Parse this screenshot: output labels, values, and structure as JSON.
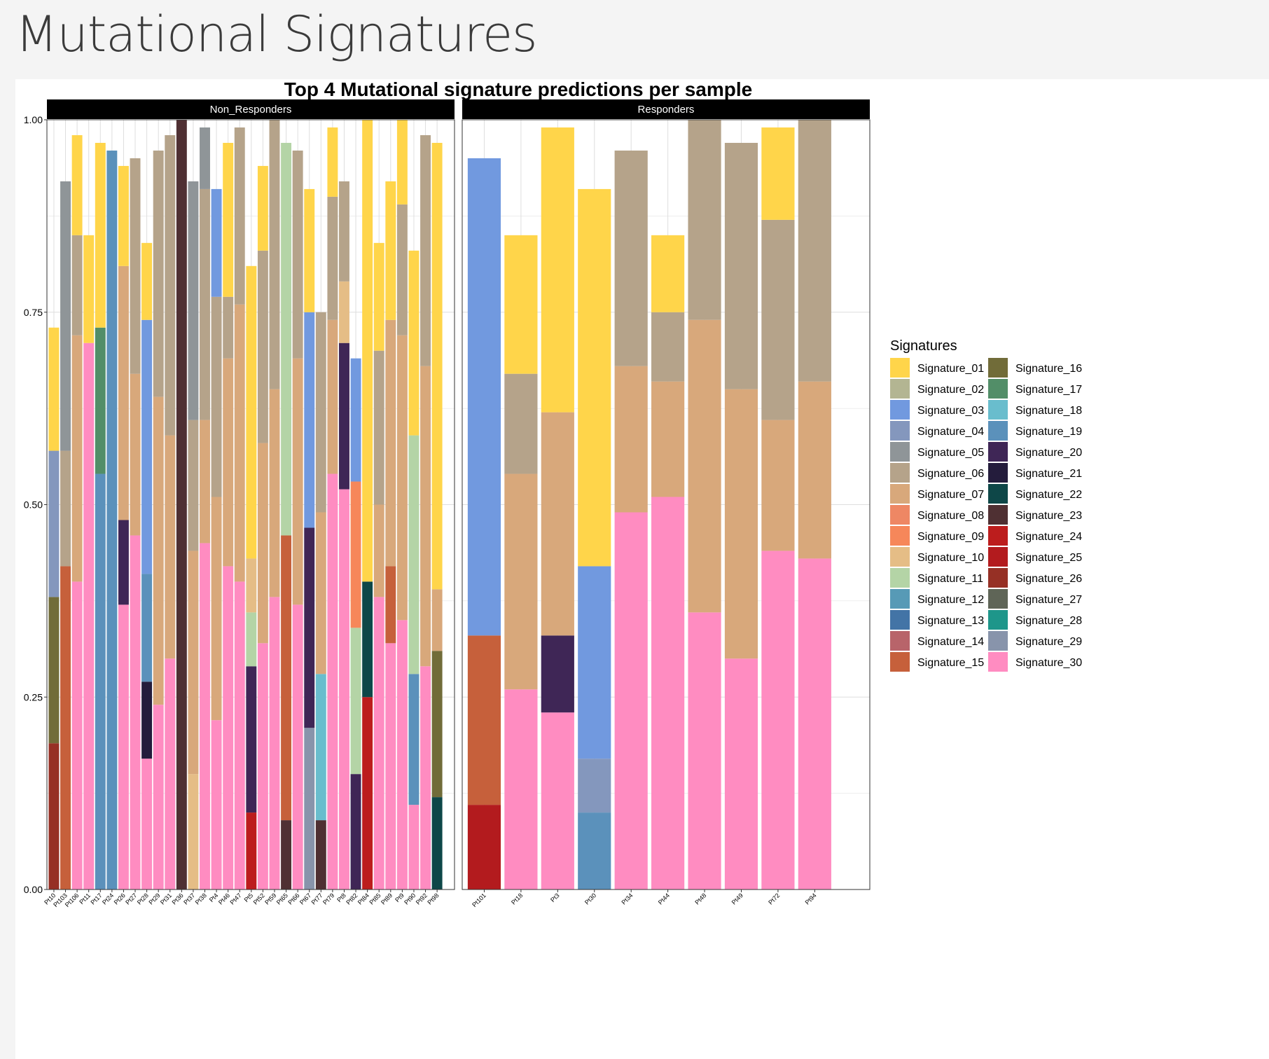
{
  "page": {
    "title": "Mutational Signatures"
  },
  "chart_data": {
    "type": "bar",
    "stacked": true,
    "title": "Top 4 Mutational signature predictions per sample",
    "xlabel": "",
    "ylabel": "",
    "ylim": [
      0,
      1
    ],
    "yticks": [
      "0.00",
      "0.25",
      "0.50",
      "0.75",
      "1.00"
    ],
    "grid": true,
    "legend": {
      "title": "Signatures",
      "position": "right"
    },
    "signatures": [
      {
        "name": "Signature_01",
        "color": "#FFD54A"
      },
      {
        "name": "Signature_02",
        "color": "#B3B592"
      },
      {
        "name": "Signature_03",
        "color": "#7199DF"
      },
      {
        "name": "Signature_04",
        "color": "#8497BD"
      },
      {
        "name": "Signature_05",
        "color": "#8F9598"
      },
      {
        "name": "Signature_06",
        "color": "#B5A38A"
      },
      {
        "name": "Signature_07",
        "color": "#D8A87B"
      },
      {
        "name": "Signature_08",
        "color": "#EE8764"
      },
      {
        "name": "Signature_09",
        "color": "#F6875A"
      },
      {
        "name": "Signature_10",
        "color": "#E5BD86"
      },
      {
        "name": "Signature_11",
        "color": "#B4D4A6"
      },
      {
        "name": "Signature_12",
        "color": "#579AB6"
      },
      {
        "name": "Signature_13",
        "color": "#4374A6"
      },
      {
        "name": "Signature_14",
        "color": "#B8646A"
      },
      {
        "name": "Signature_15",
        "color": "#C6603B"
      },
      {
        "name": "Signature_16",
        "color": "#716C39"
      },
      {
        "name": "Signature_17",
        "color": "#528E68"
      },
      {
        "name": "Signature_18",
        "color": "#69BDCD"
      },
      {
        "name": "Signature_19",
        "color": "#5B91BB"
      },
      {
        "name": "Signature_20",
        "color": "#3F2656"
      },
      {
        "name": "Signature_21",
        "color": "#241C3C"
      },
      {
        "name": "Signature_22",
        "color": "#0E4748"
      },
      {
        "name": "Signature_23",
        "color": "#4F3033"
      },
      {
        "name": "Signature_24",
        "color": "#BC1D1D"
      },
      {
        "name": "Signature_25",
        "color": "#B31B1E"
      },
      {
        "name": "Signature_26",
        "color": "#963025"
      },
      {
        "name": "Signature_27",
        "color": "#5F6557"
      },
      {
        "name": "Signature_28",
        "color": "#1E968A"
      },
      {
        "name": "Signature_29",
        "color": "#8894AB"
      },
      {
        "name": "Signature_30",
        "color": "#FF8CC1"
      }
    ],
    "panels": [
      {
        "name": "Non_Responders",
        "samples": [
          {
            "id": "Pt10",
            "stack": [
              [
                "Signature_26",
                0.19
              ],
              [
                "Signature_16",
                0.19
              ],
              [
                "Signature_04",
                0.19
              ],
              [
                "Signature_01",
                0.16
              ]
            ]
          },
          {
            "id": "Pt103",
            "stack": [
              [
                "Signature_15",
                0.42
              ],
              [
                "Signature_06",
                0.15
              ],
              [
                "Signature_05",
                0.35
              ]
            ]
          },
          {
            "id": "Pt106",
            "stack": [
              [
                "Signature_30",
                0.4
              ],
              [
                "Signature_07",
                0.32
              ],
              [
                "Signature_06",
                0.13
              ],
              [
                "Signature_01",
                0.13
              ]
            ]
          },
          {
            "id": "Pt11",
            "stack": [
              [
                "Signature_30",
                0.71
              ],
              [
                "Signature_01",
                0.14
              ]
            ]
          },
          {
            "id": "Pt17",
            "stack": [
              [
                "Signature_19",
                0.54
              ],
              [
                "Signature_17",
                0.19
              ],
              [
                "Signature_01",
                0.24
              ]
            ]
          },
          {
            "id": "Pt24",
            "stack": [
              [
                "Signature_19",
                0.96
              ]
            ]
          },
          {
            "id": "Pt26",
            "stack": [
              [
                "Signature_30",
                0.37
              ],
              [
                "Signature_20",
                0.11
              ],
              [
                "Signature_07",
                0.33
              ],
              [
                "Signature_01",
                0.13
              ]
            ]
          },
          {
            "id": "Pt27",
            "stack": [
              [
                "Signature_30",
                0.46
              ],
              [
                "Signature_07",
                0.21
              ],
              [
                "Signature_06",
                0.28
              ]
            ]
          },
          {
            "id": "Pt28",
            "stack": [
              [
                "Signature_30",
                0.17
              ],
              [
                "Signature_21",
                0.1
              ],
              [
                "Signature_19",
                0.14
              ],
              [
                "Signature_03",
                0.33
              ],
              [
                "Signature_01",
                0.1
              ]
            ]
          },
          {
            "id": "Pt29",
            "stack": [
              [
                "Signature_30",
                0.24
              ],
              [
                "Signature_07",
                0.4
              ],
              [
                "Signature_06",
                0.32
              ]
            ]
          },
          {
            "id": "Pt31",
            "stack": [
              [
                "Signature_30",
                0.3
              ],
              [
                "Signature_07",
                0.29
              ],
              [
                "Signature_06",
                0.39
              ]
            ]
          },
          {
            "id": "Pt36",
            "stack": [
              [
                "Signature_23",
                1.0
              ]
            ]
          },
          {
            "id": "Pt37",
            "stack": [
              [
                "Signature_10",
                0.15
              ],
              [
                "Signature_07",
                0.29
              ],
              [
                "Signature_06",
                0.17
              ],
              [
                "Signature_05",
                0.31
              ]
            ]
          },
          {
            "id": "Pt38",
            "stack": [
              [
                "Signature_30",
                0.45
              ],
              [
                "Signature_07",
                0.16
              ],
              [
                "Signature_06",
                0.3
              ],
              [
                "Signature_05",
                0.08
              ]
            ]
          },
          {
            "id": "Pt4",
            "stack": [
              [
                "Signature_30",
                0.22
              ],
              [
                "Signature_07",
                0.29
              ],
              [
                "Signature_06",
                0.26
              ],
              [
                "Signature_03",
                0.14
              ]
            ]
          },
          {
            "id": "Pt46",
            "stack": [
              [
                "Signature_30",
                0.42
              ],
              [
                "Signature_07",
                0.27
              ],
              [
                "Signature_06",
                0.08
              ],
              [
                "Signature_01",
                0.2
              ]
            ]
          },
          {
            "id": "Pt47",
            "stack": [
              [
                "Signature_30",
                0.4
              ],
              [
                "Signature_07",
                0.36
              ],
              [
                "Signature_06",
                0.23
              ]
            ]
          },
          {
            "id": "Pt5",
            "stack": [
              [
                "Signature_24",
                0.1
              ],
              [
                "Signature_20",
                0.19
              ],
              [
                "Signature_11",
                0.07
              ],
              [
                "Signature_10",
                0.07
              ],
              [
                "Signature_01",
                0.38
              ]
            ]
          },
          {
            "id": "Pt52",
            "stack": [
              [
                "Signature_30",
                0.32
              ],
              [
                "Signature_07",
                0.26
              ],
              [
                "Signature_06",
                0.25
              ],
              [
                "Signature_01",
                0.11
              ]
            ]
          },
          {
            "id": "Pt59",
            "stack": [
              [
                "Signature_30",
                0.38
              ],
              [
                "Signature_07",
                0.27
              ],
              [
                "Signature_06",
                0.35
              ]
            ]
          },
          {
            "id": "Pt65",
            "stack": [
              [
                "Signature_23",
                0.09
              ],
              [
                "Signature_15",
                0.37
              ],
              [
                "Signature_11",
                0.51
              ]
            ]
          },
          {
            "id": "Pt66",
            "stack": [
              [
                "Signature_30",
                0.37
              ],
              [
                "Signature_07",
                0.32
              ],
              [
                "Signature_06",
                0.27
              ]
            ]
          },
          {
            "id": "Pt67",
            "stack": [
              [
                "Signature_29",
                0.21
              ],
              [
                "Signature_20",
                0.26
              ],
              [
                "Signature_03",
                0.28
              ],
              [
                "Signature_01",
                0.16
              ]
            ]
          },
          {
            "id": "Pt77",
            "stack": [
              [
                "Signature_23",
                0.09
              ],
              [
                "Signature_18",
                0.19
              ],
              [
                "Signature_07",
                0.21
              ],
              [
                "Signature_06",
                0.26
              ]
            ]
          },
          {
            "id": "Pt79",
            "stack": [
              [
                "Signature_30",
                0.54
              ],
              [
                "Signature_07",
                0.2
              ],
              [
                "Signature_06",
                0.16
              ],
              [
                "Signature_01",
                0.09
              ]
            ]
          },
          {
            "id": "Pt8",
            "stack": [
              [
                "Signature_30",
                0.52
              ],
              [
                "Signature_20",
                0.19
              ],
              [
                "Signature_10",
                0.08
              ],
              [
                "Signature_06",
                0.13
              ]
            ]
          },
          {
            "id": "Pt82",
            "stack": [
              [
                "Signature_20",
                0.15
              ],
              [
                "Signature_11",
                0.19
              ],
              [
                "Signature_09",
                0.19
              ],
              [
                "Signature_03",
                0.16
              ]
            ]
          },
          {
            "id": "Pt84",
            "stack": [
              [
                "Signature_24",
                0.25
              ],
              [
                "Signature_22",
                0.15
              ],
              [
                "Signature_01",
                0.6
              ]
            ]
          },
          {
            "id": "Pt85",
            "stack": [
              [
                "Signature_30",
                0.38
              ],
              [
                "Signature_07",
                0.12
              ],
              [
                "Signature_06",
                0.2
              ],
              [
                "Signature_01",
                0.14
              ]
            ]
          },
          {
            "id": "Pt89",
            "stack": [
              [
                "Signature_30",
                0.32
              ],
              [
                "Signature_15",
                0.1
              ],
              [
                "Signature_07",
                0.32
              ],
              [
                "Signature_01",
                0.18
              ]
            ]
          },
          {
            "id": "Pt9",
            "stack": [
              [
                "Signature_30",
                0.35
              ],
              [
                "Signature_07",
                0.37
              ],
              [
                "Signature_06",
                0.17
              ],
              [
                "Signature_01",
                0.11
              ]
            ]
          },
          {
            "id": "Pt90",
            "stack": [
              [
                "Signature_30",
                0.11
              ],
              [
                "Signature_19",
                0.17
              ],
              [
                "Signature_11",
                0.31
              ],
              [
                "Signature_01",
                0.24
              ]
            ]
          },
          {
            "id": "Pt92",
            "stack": [
              [
                "Signature_30",
                0.29
              ],
              [
                "Signature_07",
                0.39
              ],
              [
                "Signature_06",
                0.3
              ]
            ]
          },
          {
            "id": "Pt98",
            "stack": [
              [
                "Signature_22",
                0.12
              ],
              [
                "Signature_16",
                0.19
              ],
              [
                "Signature_07",
                0.08
              ],
              [
                "Signature_01",
                0.58
              ]
            ]
          }
        ]
      },
      {
        "name": "Responders",
        "samples": [
          {
            "id": "Pt101",
            "stack": [
              [
                "Signature_25",
                0.11
              ],
              [
                "Signature_15",
                0.22
              ],
              [
                "Signature_03",
                0.62
              ]
            ]
          },
          {
            "id": "Pt18",
            "stack": [
              [
                "Signature_30",
                0.26
              ],
              [
                "Signature_07",
                0.28
              ],
              [
                "Signature_06",
                0.13
              ],
              [
                "Signature_01",
                0.18
              ]
            ]
          },
          {
            "id": "Pt3",
            "stack": [
              [
                "Signature_30",
                0.23
              ],
              [
                "Signature_20",
                0.1
              ],
              [
                "Signature_07",
                0.29
              ],
              [
                "Signature_01",
                0.37
              ]
            ]
          },
          {
            "id": "Pt30",
            "stack": [
              [
                "Signature_19",
                0.1
              ],
              [
                "Signature_04",
                0.07
              ],
              [
                "Signature_03",
                0.25
              ],
              [
                "Signature_01",
                0.49
              ]
            ]
          },
          {
            "id": "Pt34",
            "stack": [
              [
                "Signature_30",
                0.49
              ],
              [
                "Signature_07",
                0.19
              ],
              [
                "Signature_06",
                0.28
              ]
            ]
          },
          {
            "id": "Pt44",
            "stack": [
              [
                "Signature_30",
                0.51
              ],
              [
                "Signature_07",
                0.15
              ],
              [
                "Signature_06",
                0.09
              ],
              [
                "Signature_01",
                0.1
              ]
            ]
          },
          {
            "id": "Pt48",
            "stack": [
              [
                "Signature_30",
                0.36
              ],
              [
                "Signature_07",
                0.38
              ],
              [
                "Signature_06",
                0.26
              ]
            ]
          },
          {
            "id": "Pt49",
            "stack": [
              [
                "Signature_30",
                0.3
              ],
              [
                "Signature_07",
                0.35
              ],
              [
                "Signature_06",
                0.32
              ]
            ]
          },
          {
            "id": "Pt72",
            "stack": [
              [
                "Signature_30",
                0.44
              ],
              [
                "Signature_07",
                0.17
              ],
              [
                "Signature_06",
                0.26
              ],
              [
                "Signature_01",
                0.12
              ]
            ]
          },
          {
            "id": "Pt94",
            "stack": [
              [
                "Signature_30",
                0.43
              ],
              [
                "Signature_07",
                0.23
              ],
              [
                "Signature_06",
                0.34
              ]
            ]
          }
        ]
      }
    ]
  }
}
